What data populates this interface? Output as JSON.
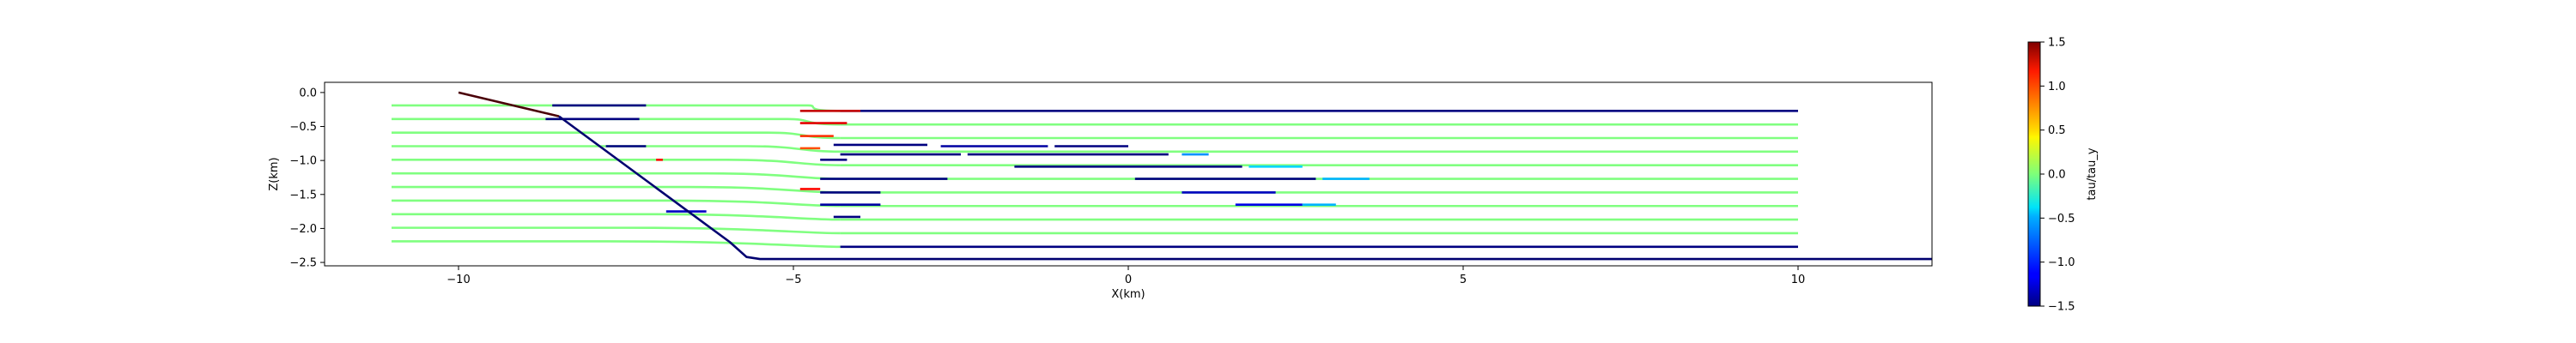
{
  "chart_data": {
    "type": "line",
    "title": "",
    "xlabel": "X(km)",
    "ylabel": "Z(km)",
    "xlim": [
      -12.0,
      12.0
    ],
    "ylim": [
      -2.55,
      0.15
    ],
    "xticks": [
      -10,
      -5,
      0,
      5,
      10
    ],
    "yticks": [
      0.0,
      -0.5,
      -1.0,
      -1.5,
      -2.0,
      -2.5
    ],
    "xtick_labels": [
      "−10",
      "−5",
      "0",
      "5",
      "10"
    ],
    "ytick_labels": [
      "0.0",
      "−0.5",
      "−1.0",
      "−1.5",
      "−2.0",
      "−2.5"
    ],
    "grid": false,
    "colormap": "jet",
    "colorbar": {
      "label": "tau/tau_y",
      "range": [
        -1.5,
        1.5
      ],
      "ticks": [
        1.5,
        1.0,
        0.5,
        0.0,
        -0.5,
        -1.0,
        -1.5
      ],
      "tick_labels": [
        "1.5",
        "1.0",
        "0.5",
        "0.0",
        "−0.5",
        "−1.0",
        "−1.5"
      ]
    },
    "boundaries": [
      {
        "color": "#4a0008",
        "points": [
          [
            -10.0,
            0.0
          ],
          [
            -8.5,
            -0.35
          ]
        ]
      },
      {
        "color": "#000070",
        "points": [
          [
            -8.5,
            -0.35
          ],
          [
            -5.95,
            -2.2
          ],
          [
            -5.7,
            -2.42
          ],
          [
            -5.5,
            -2.45
          ],
          [
            12.0,
            -2.45
          ]
        ]
      }
    ],
    "layers": [
      {
        "z": -0.19,
        "x_start": -11.0,
        "bend_x": -4.3,
        "left": 0.0,
        "right": -1.5
      },
      {
        "z": -0.39,
        "x_start": -11.0,
        "bend_x": -4.3,
        "left": 0.0,
        "right": 0.0
      },
      {
        "z": -0.59,
        "x_start": -11.0,
        "bend_x": -4.3,
        "left": 0.0,
        "right": 0.0
      },
      {
        "z": -0.79,
        "x_start": -11.0,
        "bend_x": -4.3,
        "left": 0.0,
        "right": 0.0
      },
      {
        "z": -0.99,
        "x_start": -11.0,
        "bend_x": -4.3,
        "left": 0.0,
        "right": 0.0
      },
      {
        "z": -1.19,
        "x_start": -11.0,
        "bend_x": -4.3,
        "left": 0.0,
        "right": 0.0
      },
      {
        "z": -1.39,
        "x_start": -11.0,
        "bend_x": -4.3,
        "left": 0.0,
        "right": 0.0
      },
      {
        "z": -1.59,
        "x_start": -11.0,
        "bend_x": -4.3,
        "left": 0.0,
        "right": 0.0
      },
      {
        "z": -1.79,
        "x_start": -11.0,
        "bend_x": -4.3,
        "left": 0.0,
        "right": 0.0
      },
      {
        "z": -1.99,
        "x_start": -11.0,
        "bend_x": -4.3,
        "left": 0.0,
        "right": 0.0
      },
      {
        "z": -2.19,
        "x_start": -11.0,
        "bend_x": -4.3,
        "left": 0.0,
        "right": -1.5
      }
    ],
    "segments": [
      {
        "x": [
          -8.6,
          -7.2
        ],
        "z": -0.19,
        "value": -1.5
      },
      {
        "x": [
          -8.7,
          -7.3
        ],
        "z": -0.39,
        "value": -1.5
      },
      {
        "x": [
          -7.8,
          -7.2
        ],
        "z": -0.79,
        "value": -1.5
      },
      {
        "x": [
          -7.05,
          -6.95
        ],
        "z": -0.99,
        "value": 1.1
      },
      {
        "x": [
          -6.9,
          -6.3
        ],
        "z": -1.75,
        "value": -1.3
      },
      {
        "x": [
          -4.9,
          -4.0
        ],
        "z": -0.27,
        "value": 1.3
      },
      {
        "x": [
          -4.9,
          -4.2
        ],
        "z": -0.45,
        "value": 1.2
      },
      {
        "x": [
          -4.9,
          -4.4
        ],
        "z": -0.64,
        "value": 1.0
      },
      {
        "x": [
          -4.9,
          -4.6
        ],
        "z": -0.82,
        "value": 0.9
      },
      {
        "x": [
          -4.9,
          -4.6
        ],
        "z": -1.42,
        "value": 1.1
      },
      {
        "x": [
          -4.4,
          -3.0
        ],
        "z": -0.77,
        "value": -1.5
      },
      {
        "x": [
          -2.8,
          -1.2
        ],
        "z": -0.79,
        "value": -1.4
      },
      {
        "x": [
          -1.1,
          0.0
        ],
        "z": -0.79,
        "value": -1.5
      },
      {
        "x": [
          -4.6,
          -4.2
        ],
        "z": -0.99,
        "value": -1.5
      },
      {
        "x": [
          -4.3,
          -2.5
        ],
        "z": -0.91,
        "value": -1.5
      },
      {
        "x": [
          -2.4,
          0.6
        ],
        "z": -0.91,
        "value": -1.5
      },
      {
        "x": [
          0.8,
          1.2
        ],
        "z": -0.91,
        "value": -0.7
      },
      {
        "x": [
          -1.7,
          1.7
        ],
        "z": -1.09,
        "value": -1.5
      },
      {
        "x": [
          1.8,
          2.6
        ],
        "z": -1.09,
        "value": -0.5
      },
      {
        "x": [
          -4.6,
          -2.7
        ],
        "z": -1.27,
        "value": -1.5
      },
      {
        "x": [
          0.1,
          2.8
        ],
        "z": -1.27,
        "value": -1.5
      },
      {
        "x": [
          2.9,
          3.6
        ],
        "z": -1.27,
        "value": -0.6
      },
      {
        "x": [
          -4.6,
          -3.7
        ],
        "z": -1.47,
        "value": -1.5
      },
      {
        "x": [
          0.8,
          2.2
        ],
        "z": -1.47,
        "value": -1.3
      },
      {
        "x": [
          -4.6,
          -3.7
        ],
        "z": -1.65,
        "value": -1.4
      },
      {
        "x": [
          1.6,
          2.6
        ],
        "z": -1.65,
        "value": -1.2
      },
      {
        "x": [
          2.6,
          3.1
        ],
        "z": -1.65,
        "value": -0.6
      },
      {
        "x": [
          -4.4,
          -4.0
        ],
        "z": -1.83,
        "value": -1.5
      }
    ]
  }
}
